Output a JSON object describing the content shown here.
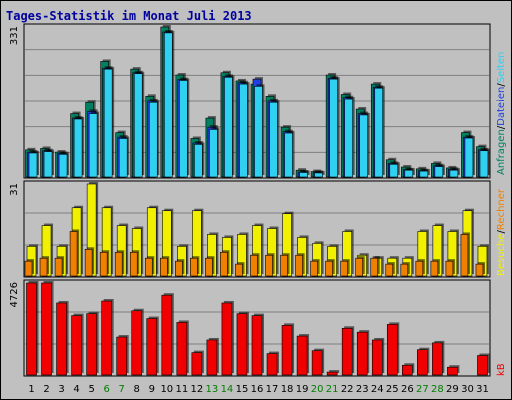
{
  "title": "Tages-Statistik im Monat Juli 2013",
  "chart_data": [
    {
      "type": "bar",
      "panel": "top",
      "ymax_label": "331",
      "ylim": [
        0,
        331
      ],
      "categories": [
        "1",
        "2",
        "3",
        "4",
        "5",
        "6",
        "7",
        "8",
        "9",
        "10",
        "11",
        "12",
        "13",
        "14",
        "15",
        "16",
        "17",
        "18",
        "19",
        "20",
        "21",
        "22",
        "23",
        "24",
        "25",
        "26",
        "27",
        "28",
        "29",
        "30",
        "31"
      ],
      "series": [
        {
          "name": "Anfragen",
          "color": "#008060",
          "values": [
            60,
            63,
            55,
            140,
            165,
            255,
            98,
            238,
            178,
            331,
            225,
            85,
            130,
            230,
            212,
            205,
            178,
            110,
            15,
            12,
            225,
            182,
            150,
            205,
            38,
            22,
            18,
            30,
            20,
            98,
            67
          ]
        },
        {
          "name": "Dateien",
          "color": "#2040e0",
          "values": [
            55,
            58,
            52,
            130,
            145,
            240,
            88,
            230,
            168,
            320,
            215,
            75,
            110,
            222,
            208,
            216,
            168,
            100,
            11,
            10,
            218,
            175,
            140,
            198,
            30,
            16,
            14,
            25,
            17,
            88,
            60
          ]
        },
        {
          "name": "Seiten",
          "color": "#30d0f0",
          "values": [
            53,
            56,
            50,
            128,
            140,
            238,
            85,
            228,
            165,
            318,
            213,
            72,
            105,
            220,
            205,
            200,
            165,
            97,
            10,
            9,
            216,
            172,
            137,
            196,
            28,
            15,
            13,
            23,
            15,
            86,
            58
          ]
        }
      ]
    },
    {
      "type": "bar",
      "panel": "middle",
      "ymax_label": "31",
      "ylim": [
        0,
        31
      ],
      "categories": [
        "1",
        "2",
        "3",
        "4",
        "5",
        "6",
        "7",
        "8",
        "9",
        "10",
        "11",
        "12",
        "13",
        "14",
        "15",
        "16",
        "17",
        "18",
        "19",
        "20",
        "21",
        "22",
        "23",
        "24",
        "25",
        "26",
        "27",
        "28",
        "29",
        "30",
        "31"
      ],
      "series": [
        {
          "name": "Besuche",
          "color": "#f0f000",
          "values": [
            10,
            17,
            10,
            23,
            31,
            23,
            17,
            16,
            23,
            22,
            10,
            22,
            14,
            13,
            14,
            17,
            16,
            21,
            13,
            11,
            10,
            15,
            7,
            6,
            6,
            6,
            15,
            17,
            15,
            22,
            10
          ]
        },
        {
          "name": "Rechner",
          "color": "#f08000",
          "values": [
            5,
            6,
            6,
            15,
            9,
            8,
            8,
            8,
            6,
            6,
            5,
            6,
            6,
            8,
            4,
            7,
            7,
            7,
            7,
            5,
            5,
            5,
            6,
            6,
            4,
            4,
            5,
            5,
            5,
            14,
            4
          ]
        }
      ]
    },
    {
      "type": "bar",
      "panel": "bottom",
      "ymax_label": "4726",
      "ylim": [
        0,
        4726
      ],
      "categories": [
        "1",
        "2",
        "3",
        "4",
        "5",
        "6",
        "7",
        "8",
        "9",
        "10",
        "11",
        "12",
        "13",
        "14",
        "15",
        "16",
        "17",
        "18",
        "19",
        "20",
        "21",
        "22",
        "23",
        "24",
        "25",
        "26",
        "27",
        "28",
        "29",
        "30",
        "31"
      ],
      "series": [
        {
          "name": "kB",
          "color": "#f00000",
          "values": [
            4726,
            4726,
            3700,
            3050,
            3150,
            3800,
            1950,
            3300,
            2900,
            4100,
            2700,
            1150,
            1800,
            3700,
            3150,
            3050,
            1100,
            2550,
            2000,
            1250,
            150,
            2400,
            2200,
            1800,
            2600,
            500,
            1300,
            1650,
            400,
            0,
            1000
          ]
        }
      ]
    }
  ],
  "xticks": [
    {
      "label": "1",
      "weekend": false
    },
    {
      "label": "2",
      "weekend": false
    },
    {
      "label": "3",
      "weekend": false
    },
    {
      "label": "4",
      "weekend": false
    },
    {
      "label": "5",
      "weekend": false
    },
    {
      "label": "6",
      "weekend": true
    },
    {
      "label": "7",
      "weekend": true
    },
    {
      "label": "8",
      "weekend": false
    },
    {
      "label": "9",
      "weekend": false
    },
    {
      "label": "10",
      "weekend": false
    },
    {
      "label": "11",
      "weekend": false
    },
    {
      "label": "12",
      "weekend": false
    },
    {
      "label": "13",
      "weekend": true
    },
    {
      "label": "14",
      "weekend": true
    },
    {
      "label": "15",
      "weekend": false
    },
    {
      "label": "16",
      "weekend": false
    },
    {
      "label": "17",
      "weekend": false
    },
    {
      "label": "18",
      "weekend": false
    },
    {
      "label": "19",
      "weekend": false
    },
    {
      "label": "20",
      "weekend": true
    },
    {
      "label": "21",
      "weekend": true
    },
    {
      "label": "22",
      "weekend": false
    },
    {
      "label": "23",
      "weekend": false
    },
    {
      "label": "24",
      "weekend": false
    },
    {
      "label": "25",
      "weekend": false
    },
    {
      "label": "26",
      "weekend": false
    },
    {
      "label": "27",
      "weekend": true
    },
    {
      "label": "28",
      "weekend": true
    },
    {
      "label": "29",
      "weekend": false
    },
    {
      "label": "30",
      "weekend": false
    },
    {
      "label": "31",
      "weekend": false
    }
  ],
  "legend_right_top": [
    {
      "text": "Anfragen",
      "color": "#008060"
    },
    {
      "text": "/",
      "color": "#000000"
    },
    {
      "text": "Dateien",
      "color": "#2040e0"
    },
    {
      "text": "/",
      "color": "#000000"
    },
    {
      "text": "Seiten",
      "color": "#30d0f0"
    }
  ],
  "legend_right_middle": [
    {
      "text": "Besuche",
      "color": "#f0f000"
    },
    {
      "text": "/",
      "color": "#000000"
    },
    {
      "text": "Rechner",
      "color": "#f08000"
    }
  ],
  "legend_right_bottom": [
    {
      "text": "kB",
      "color": "#f00000"
    }
  ],
  "colors": {
    "background": "#c0c0c0",
    "plot_bg": "#c0c0c0",
    "grid": "#808080",
    "weekend_tick": "#008000",
    "weekday_tick": "#000000",
    "title": "#0000a0"
  }
}
